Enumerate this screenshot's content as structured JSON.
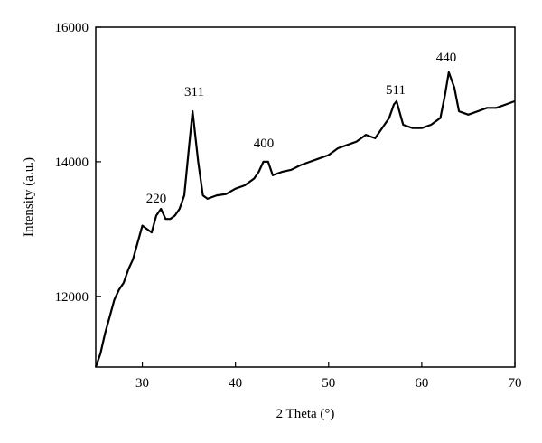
{
  "chart_data": {
    "type": "line",
    "x_label": "2 Theta (°)",
    "y_label": "Intensity (a.u.)",
    "x": [
      25,
      25.5,
      26,
      26.5,
      27,
      27.5,
      28,
      28.5,
      29,
      29.5,
      30,
      30.5,
      31,
      31.5,
      32,
      32.5,
      33,
      33.5,
      34,
      34.5,
      35,
      35.4,
      36,
      36.5,
      37,
      38,
      39,
      40,
      41,
      42,
      42.5,
      43,
      43.5,
      44,
      45,
      46,
      47,
      48,
      49,
      50,
      51,
      52,
      53,
      54,
      55,
      56,
      56.5,
      57,
      57.3,
      58,
      59,
      60,
      61,
      62,
      62.5,
      62.9,
      63.5,
      64,
      65,
      66,
      67,
      68,
      69,
      70
    ],
    "series": [
      {
        "color": "#000000",
        "values": [
          10950,
          11150,
          11450,
          11700,
          11950,
          12100,
          12200,
          12400,
          12550,
          12800,
          13050,
          13000,
          12950,
          13200,
          13300,
          13150,
          13150,
          13200,
          13300,
          13500,
          14200,
          14750,
          14000,
          13500,
          13450,
          13500,
          13520,
          13600,
          13650,
          13750,
          13850,
          14000,
          14000,
          13800,
          13850,
          13880,
          13950,
          14000,
          14050,
          14100,
          14200,
          14250,
          14300,
          14400,
          14350,
          14550,
          14650,
          14850,
          14900,
          14550,
          14500,
          14500,
          14550,
          14650,
          15000,
          15330,
          15100,
          14750,
          14700,
          14750,
          14800,
          14800,
          14850,
          14900
        ]
      }
    ],
    "annotations": [
      "220",
      "311",
      "400",
      "511",
      "440"
    ],
    "xlim": [
      25,
      70
    ],
    "xticks": [
      30,
      40,
      50,
      60,
      70
    ],
    "ylim": [
      10950,
      16000
    ],
    "yticks": [
      12000,
      14000,
      16000
    ]
  }
}
